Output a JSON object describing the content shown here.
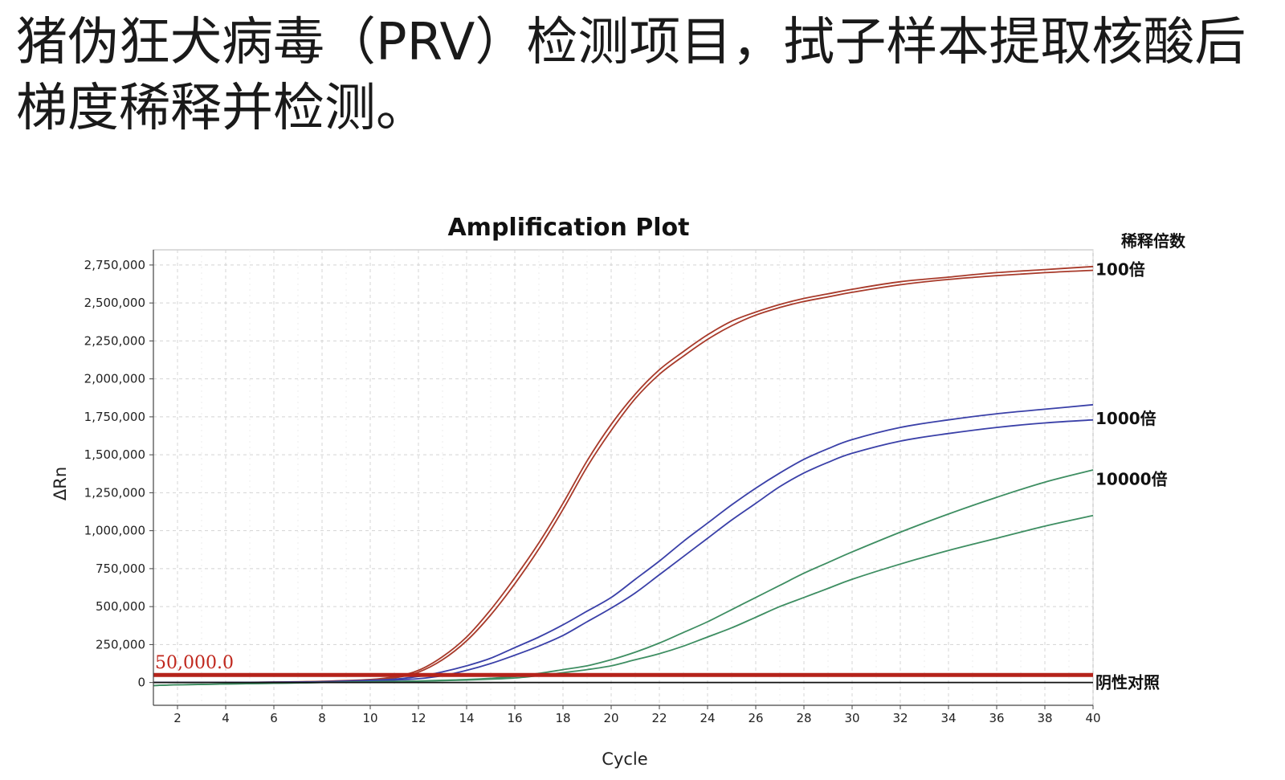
{
  "headline": "猪伪狂犬病毒（PRV）检测项目，拭子样本提取核酸后梯度稀释并检测。",
  "chart_data": {
    "type": "line",
    "title": "Amplification Plot",
    "xlabel": "Cycle",
    "ylabel": "ΔRn",
    "xlim": [
      1,
      40
    ],
    "ylim": [
      -150000,
      2850000
    ],
    "x_ticks": [
      2,
      4,
      6,
      8,
      10,
      12,
      14,
      16,
      18,
      20,
      22,
      24,
      26,
      28,
      30,
      32,
      34,
      36,
      38,
      40
    ],
    "y_ticks": [
      {
        "value": 0,
        "label": "0"
      },
      {
        "value": 250000,
        "label": "250,000"
      },
      {
        "value": 500000,
        "label": "500,000"
      },
      {
        "value": 750000,
        "label": "750,000"
      },
      {
        "value": 1000000,
        "label": "1,000,000"
      },
      {
        "value": 1250000,
        "label": "1,250,000"
      },
      {
        "value": 1500000,
        "label": "1,500,000"
      },
      {
        "value": 1750000,
        "label": "1,750,000"
      },
      {
        "value": 2000000,
        "label": "2,000,000"
      },
      {
        "value": 2250000,
        "label": "2,250,000"
      },
      {
        "value": 2500000,
        "label": "2,500,000"
      },
      {
        "value": 2750000,
        "label": "2,750,000"
      }
    ],
    "grid": true,
    "threshold": {
      "value": 50000,
      "label": "50,000.0",
      "color": "#b5231a"
    },
    "x": [
      1,
      2,
      4,
      6,
      8,
      10,
      11,
      12,
      13,
      14,
      15,
      16,
      17,
      18,
      19,
      20,
      21,
      22,
      23,
      24,
      25,
      26,
      27,
      28,
      29,
      30,
      32,
      34,
      36,
      38,
      40
    ],
    "series": [
      {
        "group": "100倍",
        "color": "#a83a2a",
        "values": [
          0,
          0,
          0,
          3000,
          8000,
          20000,
          38000,
          80000,
          170000,
          300000,
          480000,
          690000,
          920000,
          1180000,
          1460000,
          1700000,
          1900000,
          2060000,
          2180000,
          2290000,
          2380000,
          2440000,
          2490000,
          2530000,
          2560000,
          2590000,
          2640000,
          2670000,
          2700000,
          2720000,
          2740000
        ]
      },
      {
        "group": "100倍",
        "color": "#a83a2a",
        "values": [
          0,
          0,
          0,
          2000,
          6000,
          15000,
          30000,
          68000,
          150000,
          275000,
          445000,
          650000,
          880000,
          1140000,
          1420000,
          1660000,
          1870000,
          2030000,
          2150000,
          2260000,
          2350000,
          2420000,
          2470000,
          2510000,
          2540000,
          2570000,
          2620000,
          2655000,
          2680000,
          2700000,
          2715000
        ]
      },
      {
        "group": "1000倍",
        "color": "#3a40a8",
        "values": [
          0,
          0,
          0,
          2000,
          5000,
          15000,
          22000,
          40000,
          70000,
          110000,
          160000,
          230000,
          300000,
          380000,
          470000,
          560000,
          680000,
          800000,
          930000,
          1050000,
          1170000,
          1280000,
          1380000,
          1470000,
          1540000,
          1600000,
          1680000,
          1730000,
          1770000,
          1800000,
          1830000
        ]
      },
      {
        "group": "1000倍",
        "color": "#3a40a8",
        "values": [
          0,
          0,
          0,
          2000,
          4000,
          10000,
          16000,
          25000,
          45000,
          80000,
          125000,
          180000,
          240000,
          310000,
          400000,
          490000,
          590000,
          710000,
          830000,
          950000,
          1070000,
          1180000,
          1290000,
          1380000,
          1450000,
          1510000,
          1590000,
          1640000,
          1680000,
          1710000,
          1730000
        ]
      },
      {
        "group": "10000倍",
        "color": "#3e8e62",
        "values": [
          -20000,
          -15000,
          -10000,
          -5000,
          0,
          5000,
          7000,
          10000,
          15000,
          20000,
          28000,
          40000,
          60000,
          85000,
          110000,
          150000,
          200000,
          260000,
          330000,
          400000,
          480000,
          560000,
          640000,
          720000,
          790000,
          860000,
          990000,
          1110000,
          1220000,
          1320000,
          1400000
        ]
      },
      {
        "group": "10000倍",
        "color": "#3e8e62",
        "values": [
          -20000,
          -15000,
          -10000,
          -5000,
          0,
          4000,
          6000,
          8000,
          12000,
          16000,
          22000,
          30000,
          45000,
          65000,
          85000,
          110000,
          150000,
          190000,
          240000,
          300000,
          360000,
          430000,
          500000,
          560000,
          620000,
          680000,
          780000,
          870000,
          950000,
          1030000,
          1100000
        ]
      },
      {
        "group": "阴性对照",
        "color": "#111111",
        "values": [
          0,
          0,
          0,
          0,
          0,
          0,
          0,
          0,
          0,
          0,
          0,
          0,
          0,
          0,
          0,
          0,
          0,
          0,
          0,
          0,
          0,
          0,
          0,
          0,
          0,
          0,
          0,
          0,
          0,
          0,
          0
        ]
      }
    ],
    "annotations": {
      "header": "稀释倍数",
      "labels": [
        {
          "text": "100倍",
          "at_value": 2720000
        },
        {
          "text": "1000倍",
          "at_value": 1740000
        },
        {
          "text": "10000倍",
          "at_value": 1340000
        },
        {
          "text": "阴性对照",
          "at_value": 0
        }
      ]
    },
    "colors": {
      "grid": "#d4d4d4",
      "axis": "#444444",
      "threshold": "#b5231a"
    }
  }
}
